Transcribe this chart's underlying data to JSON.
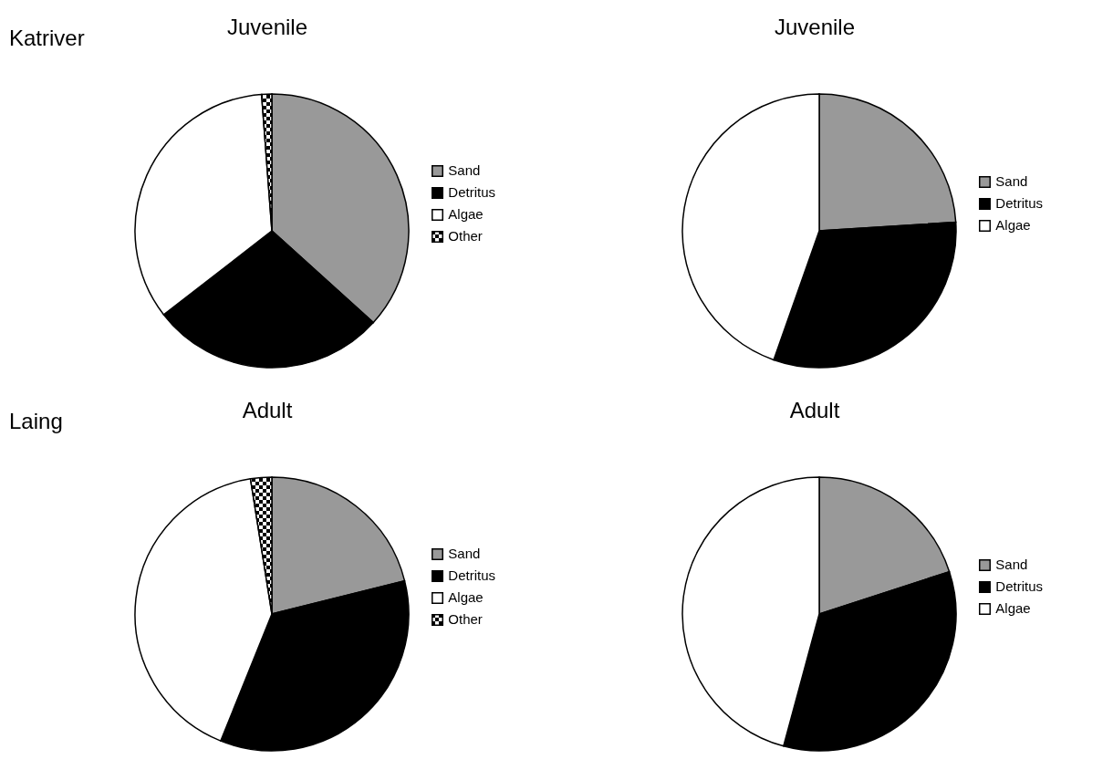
{
  "chart_data": [
    {
      "type": "pie",
      "title": "Juvenile",
      "annotations": [
        "Katriver"
      ],
      "categories": [
        "Sand",
        "Detritus",
        "Algae",
        "Other"
      ],
      "values": [
        36.7,
        27.8,
        34.3,
        1.2
      ],
      "colors": [
        "#999999",
        "#000000",
        "#ffffff",
        "#000000"
      ],
      "legend": "right"
    },
    {
      "type": "pie",
      "title": "Juvenile",
      "categories": [
        "Sand",
        "Detritus",
        "Algae"
      ],
      "values": [
        24,
        31.4,
        44.6
      ],
      "colors": [
        "#999999",
        "#000000",
        "#ffffff"
      ],
      "legend": "right"
    },
    {
      "type": "pie",
      "title": "Adult",
      "annotations": [
        "Laing"
      ],
      "categories": [
        "Sand",
        "Detritus",
        "Algae",
        "Other"
      ],
      "values": [
        21.1,
        35,
        41.4,
        2.5
      ],
      "colors": [
        "#999999",
        "#000000",
        "#ffffff",
        "#000000"
      ],
      "legend": "right"
    },
    {
      "type": "pie",
      "title": "Adult",
      "categories": [
        "Sand",
        "Detritus",
        "Algae"
      ],
      "values": [
        20,
        34.2,
        45.8
      ],
      "colors": [
        "#999999",
        "#000000",
        "#ffffff"
      ],
      "legend": "right"
    }
  ]
}
